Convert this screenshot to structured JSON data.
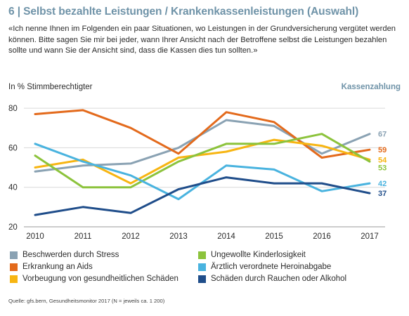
{
  "title": "6 | Selbst bezahlte Leistungen / Krankenkassenleistungen (Auswahl)",
  "question": "«Ich nenne Ihnen im Folgenden ein paar Situationen, wo Leistungen in der Grundversicherung vergütet werden können. Bitte sagen Sie mir bei jeder, wann Ihrer Ansicht nach der Betroffene selbst die Leistungen bezahlen sollte und wann Sie der Ansicht sind, dass die Kassen dies tun sollten.»",
  "source": "Quelle: gfs.bern, Gesundheitsmonitor 2017 (N = jeweils ca. 1 200)",
  "chart_data": {
    "type": "line",
    "ylabel": "In % Stimmberechtigter",
    "right_label": "Kassenzahlung",
    "x": [
      "2010",
      "2011",
      "2012",
      "2013",
      "2014",
      "2015",
      "2016",
      "2017"
    ],
    "yticks": [
      "20",
      "40",
      "60",
      "80"
    ],
    "ylim": [
      20,
      85
    ],
    "grid": true,
    "legend_position": "bottom",
    "series": [
      {
        "name": "Beschwerden durch Stress",
        "color": "#8aa2b3",
        "values": [
          48,
          51,
          52,
          60,
          74,
          71,
          57,
          67
        ],
        "end_label": "67"
      },
      {
        "name": "Erkrankung an Aids",
        "color": "#e36a1c",
        "values": [
          77,
          79,
          70,
          57,
          78,
          73,
          55,
          59
        ],
        "end_label": "59"
      },
      {
        "name": "Vorbeugung von gesundheitlichen Schäden",
        "color": "#f7b512",
        "values": [
          50,
          54,
          42,
          55,
          58,
          64,
          61,
          54
        ],
        "end_label": "54"
      },
      {
        "name": "Ungewollte Kinderlosigkeit",
        "color": "#8cc33c",
        "values": [
          56,
          40,
          40,
          53,
          62,
          62,
          67,
          53
        ],
        "end_label": "53"
      },
      {
        "name": "Ärztlich verordnete Heroinabgabe",
        "color": "#49b3df",
        "values": [
          62,
          53,
          46,
          34,
          51,
          49,
          38,
          42
        ],
        "end_label": "42"
      },
      {
        "name": "Schäden durch Rauchen oder Alkohol",
        "color": "#1f4d8a",
        "values": [
          26,
          30,
          27,
          39,
          45,
          42,
          42,
          37
        ],
        "end_label": "37"
      }
    ]
  }
}
